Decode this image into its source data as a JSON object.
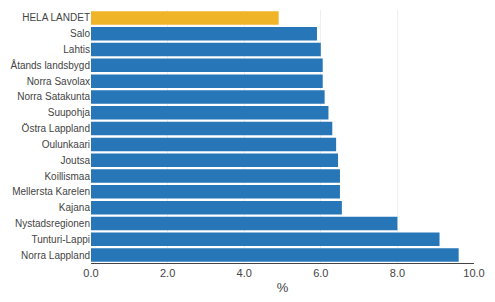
{
  "chart_data": {
    "type": "bar",
    "orientation": "horizontal",
    "categories": [
      "HELA LANDET",
      "Salo",
      "Lahtis",
      "Åtands landsbygd",
      "Norra Savolax",
      "Norra Satakunta",
      "Suupohja",
      "Östra Lappland",
      "Oulunkaari",
      "Joutsa",
      "Koillismaa",
      "Mellersta Karelen",
      "Kajana",
      "Nystadsregionen",
      "Tunturi-Lappi",
      "Norra Lappland"
    ],
    "values": [
      4.9,
      5.9,
      6.0,
      6.05,
      6.05,
      6.1,
      6.2,
      6.3,
      6.4,
      6.45,
      6.5,
      6.5,
      6.55,
      8.0,
      9.1,
      9.6
    ],
    "colors": [
      "#f0b429",
      "#2676b8",
      "#2676b8",
      "#2676b8",
      "#2676b8",
      "#2676b8",
      "#2676b8",
      "#2676b8",
      "#2676b8",
      "#2676b8",
      "#2676b8",
      "#2676b8",
      "#2676b8",
      "#2676b8",
      "#2676b8",
      "#2676b8"
    ],
    "xlabel": "%",
    "xlim": [
      0,
      10.0
    ],
    "xticks": [
      {
        "value": 0.0,
        "label": "0.0"
      },
      {
        "value": 2.0,
        "label": "2.0"
      },
      {
        "value": 4.0,
        "label": "4.0"
      },
      {
        "value": 6.0,
        "label": "6.0"
      },
      {
        "value": 8.0,
        "label": "8.0"
      },
      {
        "value": 10.0,
        "label": "10.0"
      }
    ],
    "grid": true
  }
}
